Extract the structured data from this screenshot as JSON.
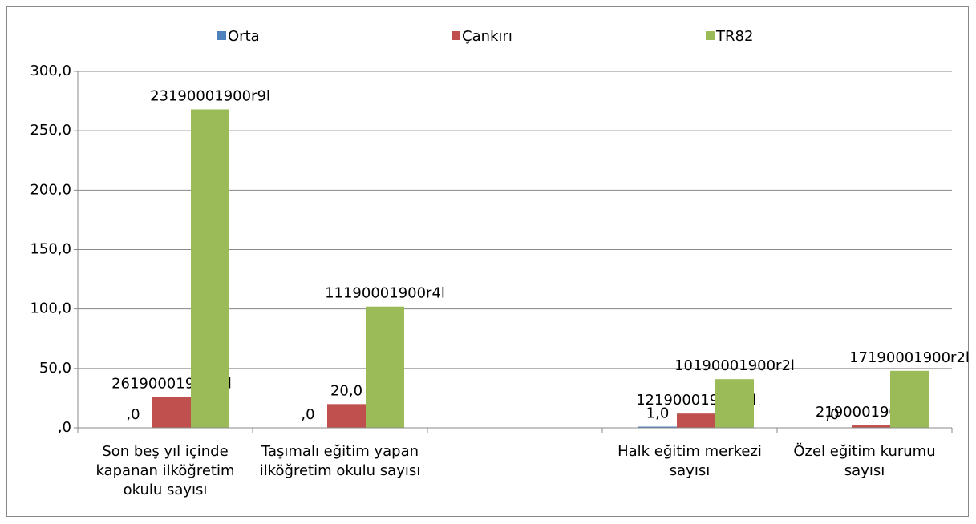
{
  "chart_data": {
    "type": "bar",
    "categories": [
      "Son beş yıl içinde kapanan ilköğretim okulu sayısı",
      "Taşımalı eğitim yapan ilköğretim okulu sayısı",
      null,
      "Halk eğitim merkezi sayısı",
      "Özel eğitim kurumu sayısı"
    ],
    "series": [
      {
        "name": "Orta",
        "color": "#4f81bd",
        "values": [
          0,
          0,
          null,
          1,
          0
        ],
        "value_labels": [
          ",0",
          ",0",
          null,
          "1,0",
          ",0"
        ]
      },
      {
        "name": "Çankırı",
        "color": "#c0504d",
        "values": [
          26,
          20,
          null,
          12,
          2
        ],
        "value_labels": [
          "26190001900r1l",
          "20,0",
          null,
          "12190001900r1l",
          "2190001900r1l"
        ]
      },
      {
        "name": "TR82",
        "color": "#9bbb59",
        "values": [
          268,
          102,
          null,
          41,
          48
        ],
        "value_labels": [
          "23190001900r9l",
          "11190001900r4l",
          null,
          "10190001900r2l",
          "17190001900r2l"
        ]
      }
    ],
    "ylim": [
      0,
      300
    ],
    "yticks": [
      {
        "value": 0,
        "label": ",0"
      },
      {
        "value": 50,
        "label": "50,0"
      },
      {
        "value": 100,
        "label": "100,0"
      },
      {
        "value": 150,
        "label": "150,0"
      },
      {
        "value": 200,
        "label": "200,0"
      },
      {
        "value": 250,
        "label": "250,0"
      },
      {
        "value": 300,
        "label": "300,0"
      }
    ],
    "grid": true,
    "legend": "top"
  }
}
